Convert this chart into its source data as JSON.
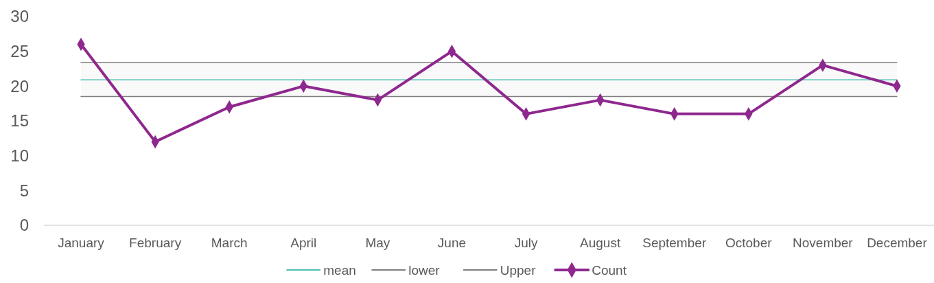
{
  "chart_data": {
    "type": "line",
    "categories": [
      "January",
      "February",
      "March",
      "April",
      "May",
      "June",
      "July",
      "August",
      "September",
      "October",
      "November",
      "December"
    ],
    "series": [
      {
        "name": "mean",
        "color": "#4bc0b4",
        "marker": "none",
        "values": [
          20.9,
          20.9,
          20.9,
          20.9,
          20.9,
          20.9,
          20.9,
          20.9,
          20.9,
          20.9,
          20.9,
          20.9
        ]
      },
      {
        "name": "lower",
        "color": "#7f7f7f",
        "marker": "none",
        "values": [
          18.5,
          18.5,
          18.5,
          18.5,
          18.5,
          18.5,
          18.5,
          18.5,
          18.5,
          18.5,
          18.5,
          18.5
        ]
      },
      {
        "name": "Upper",
        "color": "#7f7f7f",
        "marker": "none",
        "values": [
          23.4,
          23.4,
          23.4,
          23.4,
          23.4,
          23.4,
          23.4,
          23.4,
          23.4,
          23.4,
          23.4,
          23.4
        ]
      },
      {
        "name": "Count",
        "color": "#8e278e",
        "marker": "diamond",
        "values": [
          26,
          12,
          17,
          20,
          18,
          25,
          16,
          18,
          16,
          16,
          23,
          20
        ]
      }
    ],
    "bands": [
      {
        "axis": "y",
        "from": 18.5,
        "to": 23.4,
        "color": "#f9f9f9"
      }
    ],
    "ylim": [
      0,
      30
    ],
    "yticks": [
      0,
      5,
      10,
      15,
      20,
      25,
      30
    ],
    "grid": false,
    "legend": "bottom",
    "line_style": "solid"
  }
}
